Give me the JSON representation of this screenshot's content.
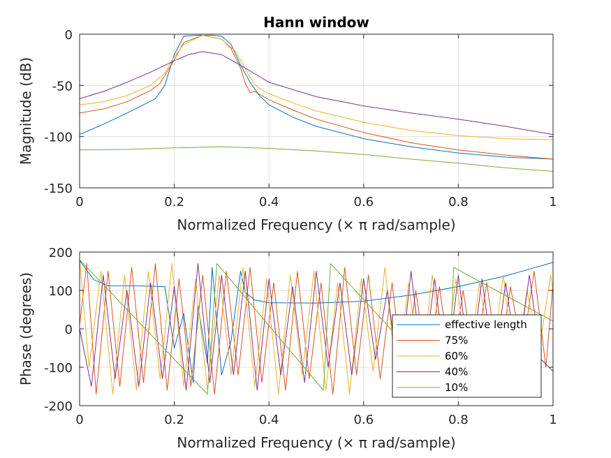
{
  "chart_data": [
    {
      "type": "line",
      "title": "Hann window",
      "xlabel": "Normalized Frequency (× π rad/sample)",
      "ylabel": "Magnitude (dB)",
      "xlim": [
        0,
        1
      ],
      "ylim": [
        -150,
        0
      ],
      "xticks": [
        0,
        0.2,
        0.4,
        0.6,
        0.8,
        1
      ],
      "xtick_labels": [
        "0",
        "0.2",
        "0.4",
        "0.6",
        "0.8",
        "1"
      ],
      "yticks": [
        -150,
        -100,
        -50,
        0
      ],
      "ytick_labels": [
        "-150",
        "-100",
        "-50",
        "0"
      ],
      "grid": true,
      "series": [
        {
          "color": "#0072BD",
          "x": [
            0,
            0.05,
            0.1,
            0.16,
            0.18,
            0.2,
            0.22,
            0.25,
            0.28,
            0.3,
            0.32,
            0.34,
            0.36,
            0.38,
            0.4,
            0.45,
            0.5,
            0.6,
            0.7,
            0.8,
            0.9,
            1.0
          ],
          "y": [
            -98,
            -88,
            -77,
            -63,
            -50,
            -20,
            -2,
            -1,
            -1,
            -2,
            -10,
            -30,
            -47,
            -60,
            -69,
            -81,
            -90,
            -102,
            -110,
            -116,
            -120,
            -122
          ]
        },
        {
          "color": "#D95319",
          "x": [
            0,
            0.05,
            0.1,
            0.15,
            0.17,
            0.2,
            0.22,
            0.26,
            0.3,
            0.32,
            0.34,
            0.35,
            0.36,
            0.37,
            0.4,
            0.45,
            0.5,
            0.6,
            0.7,
            0.8,
            0.9,
            1.0
          ],
          "y": [
            -77,
            -73,
            -66,
            -55,
            -48,
            -25,
            -8,
            -1,
            -5,
            -14,
            -33,
            -48,
            -57,
            -56,
            -64,
            -74,
            -83,
            -96,
            -106,
            -113,
            -118,
            -122
          ]
        },
        {
          "color": "#EDB120",
          "x": [
            0,
            0.05,
            0.1,
            0.15,
            0.18,
            0.2,
            0.22,
            0.26,
            0.3,
            0.33,
            0.36,
            0.37,
            0.38,
            0.4,
            0.45,
            0.5,
            0.6,
            0.7,
            0.8,
            0.9,
            1.0
          ],
          "y": [
            -69,
            -66,
            -60,
            -50,
            -38,
            -22,
            -10,
            -1,
            -5,
            -17,
            -42,
            -49,
            -53,
            -58,
            -67,
            -75,
            -86,
            -94,
            -99,
            -102,
            -103
          ]
        },
        {
          "color": "#7E2F8E",
          "x": [
            0,
            0.05,
            0.1,
            0.15,
            0.2,
            0.23,
            0.26,
            0.3,
            0.35,
            0.4,
            0.5,
            0.6,
            0.7,
            0.8,
            0.9,
            1.0
          ],
          "y": [
            -63,
            -56,
            -47,
            -37,
            -26,
            -20,
            -17,
            -20,
            -33,
            -47,
            -61,
            -70,
            -77,
            -83,
            -90,
            -98
          ]
        },
        {
          "color": "#77AC30",
          "x": [
            0,
            0.1,
            0.2,
            0.3,
            0.4,
            0.5,
            0.6,
            0.7,
            0.8,
            0.9,
            1.0
          ],
          "y": [
            -113,
            -112.5,
            -111,
            -110,
            -111.5,
            -114,
            -117.5,
            -122,
            -126,
            -130.5,
            -134
          ]
        }
      ]
    },
    {
      "type": "line",
      "title": "",
      "xlabel": "Normalized Frequency (× π rad/sample)",
      "ylabel": "Phase (degrees)",
      "xlim": [
        0,
        1
      ],
      "ylim": [
        -200,
        200
      ],
      "xticks": [
        0,
        0.2,
        0.4,
        0.6,
        0.8,
        1
      ],
      "xtick_labels": [
        "0",
        "0.2",
        "0.4",
        "0.6",
        "0.8",
        "1"
      ],
      "yticks": [
        -200,
        -100,
        0,
        100,
        200
      ],
      "ytick_labels": [
        "-200",
        "-100",
        "0",
        "100",
        "200"
      ],
      "grid": true,
      "legend_position": "bottom-right inside",
      "series": [
        {
          "name": "effective length",
          "color": "#0072BD",
          "x": [
            0,
            0.03,
            0.06,
            0.12,
            0.18,
            0.2,
            0.22,
            0.24,
            0.25,
            0.27,
            0.28,
            0.3,
            0.32,
            0.34,
            0.35,
            0.37,
            0.4,
            0.5,
            0.6,
            0.7,
            0.8,
            0.9,
            1.0
          ],
          "y": [
            178,
            128,
            112,
            112,
            110,
            -50,
            40,
            -140,
            60,
            -90,
            160,
            -120,
            -30,
            150,
            95,
            75,
            68,
            67,
            72,
            88,
            110,
            138,
            173
          ]
        },
        {
          "name": "75%",
          "color": "#D95319",
          "x": [
            0,
            0.015,
            0.035,
            0.06,
            0.085,
            0.11,
            0.135,
            0.16,
            0.185,
            0.21,
            0.235,
            0.26,
            0.285,
            0.31,
            0.335,
            0.36,
            0.385,
            0.41,
            0.435,
            0.46,
            0.485,
            0.51,
            0.535,
            0.56,
            0.585,
            0.61,
            0.635,
            0.66,
            0.685,
            0.71,
            0.735,
            0.76,
            0.785,
            0.81,
            0.835,
            0.86,
            0.885,
            0.91,
            0.935,
            0.96,
            0.985,
            1.0
          ],
          "y": [
            10,
            170,
            -170,
            150,
            -150,
            160,
            -140,
            170,
            -160,
            130,
            -150,
            140,
            -170,
            150,
            -120,
            160,
            -140,
            120,
            -160,
            150,
            -130,
            120,
            -170,
            160,
            -120,
            140,
            -130,
            120,
            -140,
            100,
            -110,
            110,
            -110,
            100,
            -90,
            120,
            -100,
            110,
            -60,
            150,
            -100,
            120
          ]
        },
        {
          "name": "60%",
          "color": "#EDB120",
          "x": [
            0,
            0.02,
            0.045,
            0.07,
            0.095,
            0.12,
            0.145,
            0.17,
            0.195,
            0.22,
            0.245,
            0.27,
            0.295,
            0.32,
            0.345,
            0.37,
            0.395,
            0.42,
            0.445,
            0.47,
            0.495,
            0.52,
            0.545,
            0.57,
            0.595,
            0.62,
            0.645,
            0.67,
            0.695,
            0.72,
            0.745,
            0.77,
            0.795,
            0.82,
            0.845,
            0.87,
            0.895,
            0.92,
            0.945,
            0.97,
            0.995,
            1.0
          ],
          "y": [
            180,
            -100,
            150,
            -170,
            140,
            -160,
            150,
            -130,
            170,
            -150,
            130,
            -160,
            140,
            -120,
            160,
            -150,
            130,
            -170,
            140,
            -120,
            150,
            -160,
            120,
            -170,
            130,
            -110,
            160,
            -140,
            120,
            -130,
            140,
            -110,
            130,
            -100,
            120,
            -90,
            140,
            -120,
            100,
            -60,
            140,
            100
          ]
        },
        {
          "name": "40%",
          "color": "#7E2F8E",
          "x": [
            0,
            0.025,
            0.05,
            0.075,
            0.1,
            0.125,
            0.15,
            0.175,
            0.2,
            0.225,
            0.25,
            0.275,
            0.3,
            0.325,
            0.35,
            0.375,
            0.4,
            0.425,
            0.45,
            0.475,
            0.5,
            0.525,
            0.55,
            0.575,
            0.6,
            0.625,
            0.65,
            0.675,
            0.7,
            0.725,
            0.75,
            0.775,
            0.8,
            0.825,
            0.85,
            0.875,
            0.9,
            0.925,
            0.95,
            0.975,
            1.0
          ],
          "y": [
            0,
            -150,
            140,
            -130,
            100,
            -150,
            120,
            -130,
            110,
            -160,
            170,
            -140,
            140,
            -120,
            150,
            -160,
            130,
            -120,
            110,
            -140,
            150,
            -100,
            120,
            -120,
            130,
            -80,
            100,
            -140,
            150,
            -110,
            130,
            -120,
            140,
            -110,
            130,
            -100,
            120,
            -90,
            140,
            -80,
            -110
          ]
        },
        {
          "name": "10%",
          "color": "#77AC30",
          "x": [
            0,
            0.27,
            0.29,
            0.515,
            0.53,
            0.78,
            0.79,
            1.0
          ],
          "y": [
            180,
            -170,
            170,
            -160,
            170,
            -165,
            160,
            20
          ]
        }
      ]
    }
  ]
}
